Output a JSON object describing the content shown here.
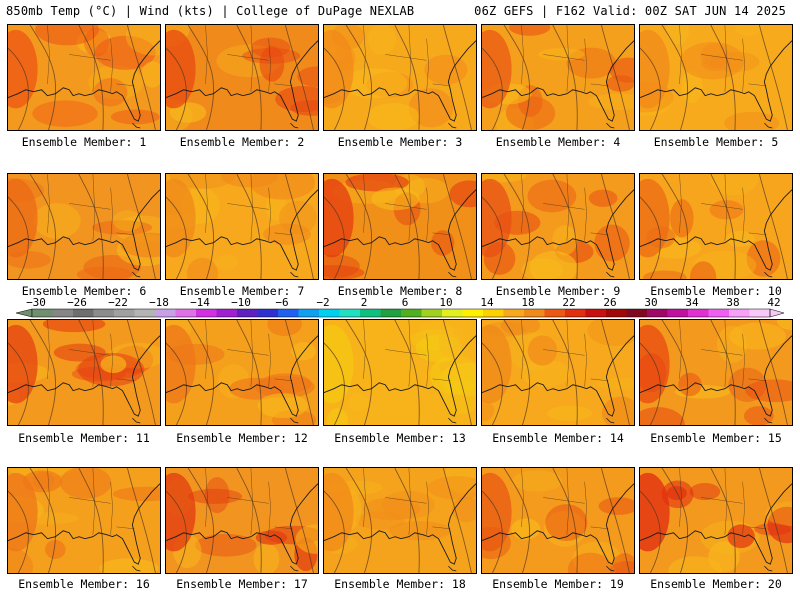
{
  "header": {
    "left_title": "850mb Temp (°C) | Wind (kts) | College of DuPage NEXLAB",
    "right_title": "06Z GEFS | F162 Valid: 00Z SAT JUN 14 2025"
  },
  "panels": [
    {
      "label": "Ensemble Member: 1",
      "base": "#f39a1e",
      "hot": "#ee5414"
    },
    {
      "label": "Ensemble Member: 2",
      "base": "#f08a1a",
      "hot": "#e84a12"
    },
    {
      "label": "Ensemble Member: 3",
      "base": "#f7a91c",
      "hot": "#f28a1a"
    },
    {
      "label": "Ensemble Member: 4",
      "base": "#f5a01c",
      "hot": "#ea5a14"
    },
    {
      "label": "Ensemble Member: 5",
      "base": "#f7aa1c",
      "hot": "#f28a1a"
    },
    {
      "label": "Ensemble Member: 6",
      "base": "#f29520",
      "hot": "#ec6a16"
    },
    {
      "label": "Ensemble Member: 7",
      "base": "#f7a81c",
      "hot": "#f08a1a"
    },
    {
      "label": "Ensemble Member: 8",
      "base": "#f19018",
      "hot": "#e43c10"
    },
    {
      "label": "Ensemble Member: 9",
      "base": "#f49a1c",
      "hot": "#e85014"
    },
    {
      "label": "Ensemble Member: 10",
      "base": "#f7a51c",
      "hot": "#ec6a16"
    },
    {
      "label": "Ensemble Member: 11",
      "base": "#f39a1e",
      "hot": "#e64012"
    },
    {
      "label": "Ensemble Member: 12",
      "base": "#f5a01c",
      "hot": "#ee7618"
    },
    {
      "label": "Ensemble Member: 13",
      "base": "#f8b21a",
      "hot": "#f5c814"
    },
    {
      "label": "Ensemble Member: 14",
      "base": "#f7a81c",
      "hot": "#f08a1a"
    },
    {
      "label": "Ensemble Member: 15",
      "base": "#f39a1e",
      "hot": "#e84a12"
    },
    {
      "label": "Ensemble Member: 16",
      "base": "#f5a01c",
      "hot": "#ee7618"
    },
    {
      "label": "Ensemble Member: 17",
      "base": "#f29520",
      "hot": "#e23a10"
    },
    {
      "label": "Ensemble Member: 18",
      "base": "#f5a31c",
      "hot": "#f08a1a"
    },
    {
      "label": "Ensemble Member: 19",
      "base": "#f49a1c",
      "hot": "#ea5a14"
    },
    {
      "label": "Ensemble Member: 20",
      "base": "#f39a1e",
      "hot": "#e02a10"
    }
  ],
  "colorbar": {
    "tick_labels": [
      "−30",
      "−26",
      "−22",
      "−18",
      "−14",
      "−10",
      "−6",
      "−2",
      "2",
      "6",
      "10",
      "14",
      "18",
      "22",
      "26",
      "30",
      "34",
      "38",
      "42"
    ],
    "colors": [
      "#6f8f6f",
      "#868686",
      "#6e6e6e",
      "#8c8c8c",
      "#a0a0a0",
      "#b4b4b4",
      "#c8a0e8",
      "#e070e8",
      "#d030e0",
      "#a020d0",
      "#6020c0",
      "#3030d0",
      "#2060f0",
      "#10a0f0",
      "#00d0f0",
      "#20e0c0",
      "#10c080",
      "#20a040",
      "#50b020",
      "#a0d020",
      "#e0f020",
      "#fff000",
      "#ffd000",
      "#f7a81c",
      "#f08a1a",
      "#ea5a14",
      "#e03010",
      "#c81010",
      "#a00808",
      "#800820",
      "#a00868",
      "#c010a0",
      "#e030d0",
      "#f060f0",
      "#f8a0f8",
      "#f8c8f8"
    ]
  }
}
